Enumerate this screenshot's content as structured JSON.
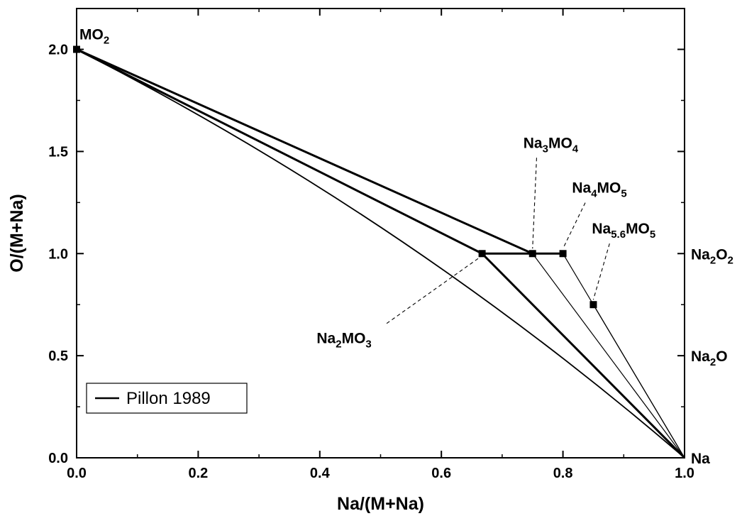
{
  "chart_data": {
    "type": "line",
    "xlabel": "Na/(M+Na)",
    "ylabel": "O/(M+Na)",
    "xlim": [
      0.0,
      1.0
    ],
    "ylim": [
      0.0,
      2.2
    ],
    "xticks": [
      0.0,
      0.2,
      0.4,
      0.6,
      0.8,
      1.0
    ],
    "yticks": [
      0.0,
      0.5,
      1.0,
      1.5,
      2.0
    ],
    "xtick_labels": [
      "0.0",
      "0.2",
      "0.4",
      "0.6",
      "0.8",
      "1.0"
    ],
    "ytick_labels": [
      "0.0",
      "0.5",
      "1.0",
      "1.5",
      "2.0"
    ],
    "grid": false,
    "legend": {
      "placement": "bottom-left",
      "entries": [
        "Pillon 1989"
      ]
    },
    "series": [
      {
        "name": "Pillon 1989",
        "segments": [
          {
            "from": [
              0.0,
              2.0
            ],
            "to": [
              1.0,
              0.0
            ],
            "weight": "medium",
            "curvature": 0.06
          },
          {
            "from": [
              0.0,
              2.0
            ],
            "to": [
              0.667,
              1.0
            ],
            "weight": "heavy"
          },
          {
            "from": [
              0.0,
              2.0
            ],
            "to": [
              0.75,
              1.0
            ],
            "weight": "heavy"
          },
          {
            "from": [
              0.667,
              1.0
            ],
            "to": [
              0.8,
              1.0
            ],
            "weight": "heavy"
          },
          {
            "from": [
              0.667,
              1.0
            ],
            "to": [
              1.0,
              0.0
            ],
            "weight": "heavy"
          },
          {
            "from": [
              0.75,
              1.0
            ],
            "to": [
              1.0,
              0.0
            ],
            "weight": "thin"
          },
          {
            "from": [
              0.8,
              1.0
            ],
            "to": [
              1.0,
              0.0
            ],
            "weight": "thin"
          },
          {
            "from": [
              0.85,
              0.75
            ],
            "to": [
              1.0,
              0.0
            ],
            "weight": "thin"
          }
        ]
      }
    ],
    "points": [
      {
        "x": 0.0,
        "y": 2.0
      },
      {
        "x": 0.667,
        "y": 1.0
      },
      {
        "x": 0.75,
        "y": 1.0
      },
      {
        "x": 0.8,
        "y": 1.0
      },
      {
        "x": 0.85,
        "y": 0.75
      }
    ],
    "annotations": [
      {
        "parts": [
          [
            "MO",
            ""
          ],
          [
            "2",
            "sub"
          ]
        ],
        "at": [
          0.0,
          2.0
        ],
        "side": "corner-label"
      },
      {
        "parts": [
          [
            "Na",
            ""
          ],
          [
            "3",
            "sub"
          ],
          [
            "MO",
            ""
          ],
          [
            "4",
            "sub"
          ]
        ],
        "target": [
          0.75,
          1.0
        ],
        "label_at": [
          0.78,
          1.49
        ],
        "leader": "dashed"
      },
      {
        "parts": [
          [
            "Na",
            ""
          ],
          [
            "4",
            "sub"
          ],
          [
            "MO",
            ""
          ],
          [
            "5",
            "sub"
          ]
        ],
        "target": [
          0.8,
          1.0
        ],
        "label_at": [
          0.86,
          1.27
        ],
        "leader": "dashed"
      },
      {
        "parts": [
          [
            "Na",
            ""
          ],
          [
            "5.6",
            "sub"
          ],
          [
            "MO",
            ""
          ],
          [
            "5",
            "sub"
          ]
        ],
        "target": [
          0.85,
          0.75
        ],
        "label_at": [
          0.9,
          1.07
        ],
        "leader": "dashed"
      },
      {
        "parts": [
          [
            "Na",
            ""
          ],
          [
            "2",
            "sub"
          ],
          [
            "MO",
            ""
          ],
          [
            "3",
            "sub"
          ]
        ],
        "target": [
          0.667,
          1.0
        ],
        "label_at": [
          0.44,
          0.63
        ],
        "leader": "dashed"
      }
    ],
    "right_axis_labels": [
      {
        "parts": [
          [
            "Na",
            ""
          ],
          [
            "2",
            "sub"
          ],
          [
            "O",
            ""
          ],
          [
            "2",
            "sub"
          ]
        ],
        "y": 1.0
      },
      {
        "parts": [
          [
            "Na",
            ""
          ],
          [
            "2",
            "sub"
          ],
          [
            "O",
            ""
          ]
        ],
        "y": 0.5
      },
      {
        "parts": [
          [
            "Na",
            ""
          ]
        ],
        "y": 0.0
      }
    ]
  }
}
